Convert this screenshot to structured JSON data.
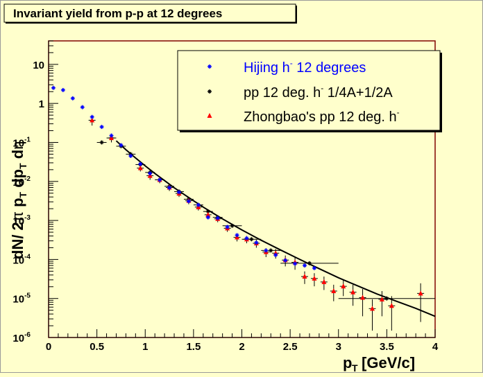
{
  "title": "Invariant yield from p-p at 12 degrees",
  "colors": {
    "background": "#ffffcc",
    "frame": "#800000",
    "hijing": "#0000ff",
    "pp": "#000000",
    "zhongbao": "#ff0000",
    "fit": "#000000"
  },
  "chart_data": {
    "type": "scatter",
    "title": "Invariant yield from p-p at 12 degrees",
    "xlabel": "p_T [GeV/c]",
    "ylabel": "dN/ 2π p_T dp_T dη",
    "xlim": [
      0,
      4
    ],
    "ylim": [
      1e-06,
      40
    ],
    "yscale": "log",
    "grid": false,
    "legend_position": "top-right",
    "x_ticks": [
      "0",
      "0.5",
      "1",
      "1.5",
      "2",
      "2.5",
      "3",
      "3.5",
      "4"
    ],
    "y_ticks": [
      {
        "value": 10,
        "base": "10",
        "exp": ""
      },
      {
        "value": 1,
        "base": "1",
        "exp": ""
      },
      {
        "value": 0.1,
        "base": "10",
        "exp": "-1"
      },
      {
        "value": 0.01,
        "base": "10",
        "exp": "-2"
      },
      {
        "value": 0.001,
        "base": "10",
        "exp": "-3"
      },
      {
        "value": 0.0001,
        "base": "10",
        "exp": "-4"
      },
      {
        "value": 1e-05,
        "base": "10",
        "exp": "-5"
      },
      {
        "value": 1e-06,
        "base": "10",
        "exp": "-6"
      }
    ],
    "series": [
      {
        "name": "Hijing h- 12 degrees",
        "marker": "star",
        "color": "#0000ff",
        "x": [
          0.05,
          0.15,
          0.25,
          0.35,
          0.45,
          0.55,
          0.65,
          0.75,
          0.85,
          0.95,
          1.05,
          1.15,
          1.25,
          1.35,
          1.45,
          1.55,
          1.65,
          1.75,
          1.85,
          1.95,
          2.05,
          2.15,
          2.25,
          2.35,
          2.45,
          2.55,
          2.65,
          2.75
        ],
        "y": [
          2.5,
          2.2,
          1.35,
          0.8,
          0.45,
          0.25,
          0.15,
          0.085,
          0.045,
          0.028,
          0.016,
          0.011,
          0.0069,
          0.0053,
          0.0031,
          0.0025,
          0.0012,
          0.00115,
          0.00068,
          0.00042,
          0.00035,
          0.00027,
          0.00017,
          0.00013,
          9.5e-05,
          7.8e-05,
          7e-05,
          6e-05
        ]
      },
      {
        "name": "pp 12 deg. h- 1/4A+1/2A",
        "marker": "star",
        "color": "#000000",
        "points": [
          {
            "x": 0.55,
            "y": 0.1,
            "xerr": 0.05,
            "yerr": 0
          },
          {
            "x": 0.65,
            "y": 0.13,
            "xerr": 0.05,
            "yerr": 0
          },
          {
            "x": 0.75,
            "y": 0.08,
            "xerr": 0.05,
            "yerr": 0
          },
          {
            "x": 0.85,
            "y": 0.05,
            "xerr": 0.05,
            "yerr": 0
          },
          {
            "x": 0.95,
            "y": 0.027,
            "xerr": 0.05,
            "yerr": 0
          },
          {
            "x": 1.05,
            "y": 0.017,
            "xerr": 0.05,
            "yerr": 0
          },
          {
            "x": 1.15,
            "y": 0.011,
            "xerr": 0.05,
            "yerr": 0
          },
          {
            "x": 1.25,
            "y": 0.0075,
            "xerr": 0.05,
            "yerr": 0
          },
          {
            "x": 1.35,
            "y": 0.0055,
            "xerr": 0.05,
            "yerr": 0
          },
          {
            "x": 1.45,
            "y": 0.0035,
            "xerr": 0.05,
            "yerr": 0
          },
          {
            "x": 1.55,
            "y": 0.0025,
            "xerr": 0.05,
            "yerr": 0
          },
          {
            "x": 1.65,
            "y": 0.0017,
            "xerr": 0.05,
            "yerr": 0
          },
          {
            "x": 1.75,
            "y": 0.0012,
            "xerr": 0.05,
            "yerr": 0
          },
          {
            "x": 1.9,
            "y": 0.00073,
            "xerr": 0.1,
            "yerr": 0
          },
          {
            "x": 2.1,
            "y": 0.00033,
            "xerr": 0.1,
            "yerr": 0
          },
          {
            "x": 2.3,
            "y": 0.00017,
            "xerr": 0.1,
            "yerr": 0
          },
          {
            "x": 2.7,
            "y": 8e-05,
            "xerr": 0.3,
            "yerr": 0
          },
          {
            "x": 3.5,
            "y": 1e-05,
            "xerr": 0.5,
            "yerr": 0
          }
        ]
      },
      {
        "name": "Zhongbao's pp 12 deg. h-",
        "marker": "triangle",
        "color": "#ff0000",
        "points": [
          {
            "x": 0.45,
            "y": 0.37,
            "yerr": 0.1
          },
          {
            "x": 0.65,
            "y": 0.13,
            "yerr": 0.03
          },
          {
            "x": 0.95,
            "y": 0.022,
            "yerr": 0.004
          },
          {
            "x": 1.05,
            "y": 0.014,
            "yerr": 0.003
          },
          {
            "x": 1.15,
            "y": 0.011,
            "yerr": 0.002
          },
          {
            "x": 1.25,
            "y": 0.007,
            "yerr": 0.0013
          },
          {
            "x": 1.35,
            "y": 0.0049,
            "yerr": 0.0009
          },
          {
            "x": 1.45,
            "y": 0.0032,
            "yerr": 0.0006
          },
          {
            "x": 1.55,
            "y": 0.0022,
            "yerr": 0.0004
          },
          {
            "x": 1.65,
            "y": 0.0014,
            "yerr": 0.0003
          },
          {
            "x": 1.75,
            "y": 0.0011,
            "yerr": 0.0002
          },
          {
            "x": 1.85,
            "y": 0.00063,
            "yerr": 0.00012
          },
          {
            "x": 1.95,
            "y": 0.00037,
            "yerr": 8e-05
          },
          {
            "x": 2.05,
            "y": 0.00033,
            "yerr": 7e-05
          },
          {
            "x": 2.15,
            "y": 0.00026,
            "yerr": 6e-05
          },
          {
            "x": 2.25,
            "y": 0.000155,
            "yerr": 4e-05
          },
          {
            "x": 2.35,
            "y": 0.000145,
            "yerr": 4e-05
          },
          {
            "x": 2.45,
            "y": 9.65e-05,
            "yerr": 3e-05
          },
          {
            "x": 2.55,
            "y": 8.45e-05,
            "yerr": 3e-05
          },
          {
            "x": 2.65,
            "y": 3.65e-05,
            "yerr": 1.3e-05
          },
          {
            "x": 2.75,
            "y": 3.25e-05,
            "yerr": 1.2e-05
          },
          {
            "x": 2.85,
            "y": 2.65e-05,
            "yerr": 1e-05
          },
          {
            "x": 2.95,
            "y": 1.55e-05,
            "yerr": 7e-06
          },
          {
            "x": 3.05,
            "y": 2.05e-05,
            "yerr": 9e-06
          },
          {
            "x": 3.15,
            "y": 1.45e-05,
            "yerr": 8e-06
          },
          {
            "x": 3.25,
            "y": 1.05e-05,
            "yerr": 7e-06
          },
          {
            "x": 3.35,
            "y": 5.5e-06,
            "yerr": 4e-06
          },
          {
            "x": 3.45,
            "y": 9.5e-06,
            "yerr": 6e-06
          },
          {
            "x": 3.55,
            "y": 6.5e-06,
            "yerr": 5e-06
          },
          {
            "x": 3.85,
            "y": 1.35e-05,
            "yerr": 1.1e-05
          }
        ]
      },
      {
        "name": "",
        "type": "line",
        "color": "#000000",
        "x": [
          0.7,
          0.8,
          0.9,
          1.0,
          1.1,
          1.2,
          1.3,
          1.4,
          1.5,
          1.6,
          1.7,
          1.8,
          1.9,
          2.0,
          2.2,
          2.4,
          2.6,
          2.8,
          3.0,
          3.2,
          3.4,
          3.6,
          3.8,
          4.0
        ],
        "y": [
          0.11,
          0.065,
          0.04,
          0.025,
          0.016,
          0.0105,
          0.0069,
          0.0047,
          0.0032,
          0.0022,
          0.00155,
          0.0011,
          0.00079,
          0.00057,
          0.00031,
          0.000175,
          0.0001,
          5.8e-05,
          3.4e-05,
          2.1e-05,
          1.3e-05,
          8.5e-06,
          5.6e-06,
          3.5e-06
        ]
      }
    ]
  },
  "legend": [
    {
      "text": "Hijing h",
      "sup": "-",
      "rest": " 12 degrees",
      "color": "#0000ff"
    },
    {
      "text": "pp 12 deg. h",
      "sup": "-",
      "rest": " 1/4A+1/2A",
      "color": "#000000"
    },
    {
      "text": "Zhongbao's pp 12 deg. h",
      "sup": "-",
      "rest": "",
      "color": "#000000"
    }
  ]
}
